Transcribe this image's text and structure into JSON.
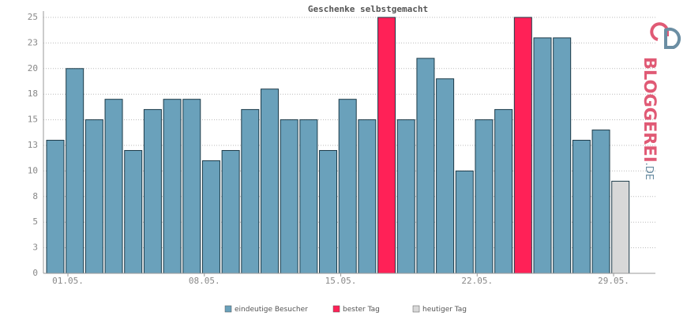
{
  "chart_data": {
    "type": "bar",
    "title": "Geschenke selbstgemacht",
    "categories": [
      "01.05.",
      null,
      null,
      null,
      null,
      null,
      null,
      "08.05.",
      null,
      null,
      null,
      null,
      null,
      null,
      "15.05.",
      null,
      null,
      null,
      null,
      null,
      null,
      "22.05.",
      null,
      null,
      null,
      null,
      null,
      null,
      "29.05.",
      null
    ],
    "series": [
      {
        "name": "eindeutige Besucher",
        "color": "#6aa1bb",
        "values": [
          13,
          20,
          15,
          17,
          12,
          16,
          17,
          17,
          11,
          12,
          16,
          18,
          15,
          15,
          12,
          17,
          15,
          null,
          15,
          21,
          19,
          10,
          15,
          16,
          null,
          23,
          23,
          13,
          14,
          null
        ]
      },
      {
        "name": "bester Tag",
        "color": "#ff2157",
        "values": [
          null,
          null,
          null,
          null,
          null,
          null,
          null,
          null,
          null,
          null,
          null,
          null,
          null,
          null,
          null,
          null,
          null,
          25,
          null,
          null,
          null,
          null,
          null,
          null,
          25,
          null,
          null,
          null,
          null,
          null
        ]
      },
      {
        "name": "heutiger Tag",
        "color": "#d8d8d8",
        "values": [
          null,
          null,
          null,
          null,
          null,
          null,
          null,
          null,
          null,
          null,
          null,
          null,
          null,
          null,
          null,
          null,
          null,
          null,
          null,
          null,
          null,
          null,
          null,
          null,
          null,
          null,
          null,
          null,
          null,
          9
        ]
      }
    ],
    "ylim": [
      0,
      25
    ],
    "yticks": [
      0,
      {
        "value": 2.5,
        "label": "3"
      },
      5,
      {
        "value": 7.5,
        "label": "8"
      },
      10,
      {
        "value": 12.5,
        "label": "13"
      },
      15,
      {
        "value": 17.5,
        "label": "18"
      },
      20,
      {
        "value": 22.5,
        "label": "23"
      },
      25
    ],
    "grid": true,
    "logo": {
      "name": "BLOGGEREI",
      "suffix": ".DE"
    }
  }
}
